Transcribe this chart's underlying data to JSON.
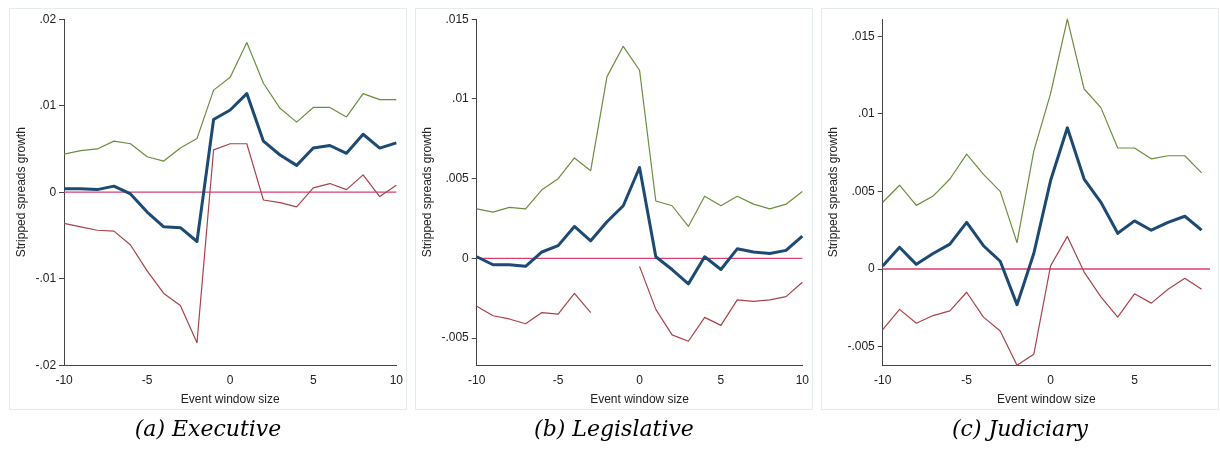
{
  "chart_data": [
    {
      "type": "line",
      "title": "(a) Executive",
      "xlabel": "Event window size",
      "ylabel": "Stripped spreads growth",
      "x": [
        -10,
        -9,
        -8,
        -7,
        -6,
        -5,
        -4,
        -3,
        -2,
        -1,
        0,
        1,
        2,
        3,
        4,
        5,
        6,
        7,
        8,
        9,
        10
      ],
      "series": [
        {
          "color": "#6b8e3e",
          "values": [
            0.0044,
            0.0048,
            0.005,
            0.0059,
            0.0056,
            0.0041,
            0.0036,
            0.0051,
            0.0062,
            0.0118,
            0.0133,
            0.0173,
            0.0126,
            0.0097,
            0.0081,
            0.0098,
            0.0098,
            0.0087,
            0.0114,
            0.0107,
            0.0107
          ]
        },
        {
          "color": "#a8434a",
          "values": [
            -0.0036,
            -0.004,
            -0.0044,
            -0.0045,
            -0.0061,
            -0.0091,
            -0.0117,
            -0.0131,
            -0.0174,
            0.0049,
            0.0056,
            0.0056,
            -0.0009,
            -0.0012,
            -0.0017,
            0.0005,
            0.001,
            0.0003,
            0.002,
            -0.0005,
            0.0008
          ]
        },
        {
          "color": "#1d4a72",
          "values": [
            0.0004,
            0.0004,
            0.0003,
            0.0007,
            -0.0002,
            -0.0023,
            -0.004,
            -0.0041,
            -0.0057,
            0.0084,
            0.0095,
            0.0114,
            0.0059,
            0.0043,
            0.0031,
            0.0051,
            0.0054,
            0.0045,
            0.0067,
            0.0051,
            0.0057
          ]
        }
      ],
      "xlim": [
        -10,
        10
      ],
      "xticks": [
        -10,
        -5,
        0,
        5,
        10
      ],
      "ylim": [
        -0.02,
        0.02
      ],
      "yticks": [
        {
          "value": -0.02,
          "label": "-.02"
        },
        {
          "value": -0.01,
          "label": "-.01"
        },
        {
          "value": 0,
          "label": "0"
        },
        {
          "value": 0.01,
          "label": ".01"
        },
        {
          "value": 0.02,
          "label": ".02"
        }
      ],
      "ref_lines": [
        {
          "axis": "y",
          "value": 0,
          "color": "#d94070"
        }
      ],
      "grid": false,
      "legend": false
    },
    {
      "type": "line",
      "title": "(b) Legislative",
      "xlabel": "Event window size",
      "ylabel": "Stripped spreads growth",
      "x": [
        -10,
        -9,
        -8,
        -7,
        -6,
        -5,
        -4,
        -3,
        -2,
        -1,
        0,
        1,
        2,
        3,
        4,
        5,
        6,
        7,
        8,
        9,
        10
      ],
      "series": [
        {
          "color": "#6b8e3e",
          "values": [
            0.0031,
            0.0029,
            0.0032,
            0.0031,
            0.0043,
            0.005,
            0.0063,
            0.0055,
            0.0114,
            0.0133,
            0.0118,
            0.0036,
            0.0033,
            0.002,
            0.0039,
            0.0033,
            0.0039,
            0.0034,
            0.0031,
            0.0034,
            0.0042
          ]
        },
        {
          "color": "#a8434a",
          "values": [
            -0.003,
            -0.0036,
            -0.0038,
            -0.0041,
            -0.0034,
            -0.0035,
            -0.0022,
            -0.0034,
            null,
            null,
            -0.0005,
            -0.0032,
            -0.0048,
            -0.0052,
            -0.0037,
            -0.0042,
            -0.0026,
            -0.0027,
            -0.0026,
            -0.0024,
            -0.0015
          ]
        },
        {
          "color": "#1d4a72",
          "values": [
            0.0001,
            -0.0004,
            -0.0004,
            -0.0005,
            0.0004,
            0.0008,
            0.002,
            0.0011,
            0.0023,
            0.0033,
            0.0057,
            0.0001,
            -0.0007,
            -0.0016,
            0.0001,
            -0.0007,
            0.0006,
            0.0004,
            0.0003,
            0.0005,
            0.0014
          ]
        }
      ],
      "xlim": [
        -10,
        10
      ],
      "xticks": [
        -10,
        -5,
        0,
        5,
        10
      ],
      "ylim": [
        -0.0067,
        0.015
      ],
      "yticks": [
        {
          "value": -0.005,
          "label": "-.005"
        },
        {
          "value": 0,
          "label": "0"
        },
        {
          "value": 0.005,
          "label": ".005"
        },
        {
          "value": 0.01,
          "label": ".01"
        },
        {
          "value": 0.015,
          "label": ".015"
        }
      ],
      "ref_lines": [
        {
          "axis": "y",
          "value": 0,
          "color": "#d94070"
        }
      ],
      "grid": false,
      "legend": false
    },
    {
      "type": "line",
      "title": "(c) Judiciary",
      "xlabel": "Event window size",
      "ylabel": "Stripped spreads growth",
      "x": [
        -10,
        -9,
        -8,
        -7,
        -6,
        -5,
        -4,
        -3,
        -2,
        -1,
        0,
        1,
        2,
        3,
        4,
        5,
        6,
        7,
        8,
        9
      ],
      "series": [
        {
          "color": "#6b8e3e",
          "values": [
            0.0043,
            0.0054,
            0.0041,
            0.0047,
            0.0058,
            0.0074,
            0.0061,
            0.005,
            0.0017,
            0.0076,
            0.0113,
            0.0161,
            0.0116,
            0.0104,
            0.0078,
            0.0078,
            0.0071,
            0.0073,
            0.0073,
            0.0062
          ]
        },
        {
          "color": "#a8434a",
          "values": [
            -0.0039,
            -0.0026,
            -0.0035,
            -0.003,
            -0.0027,
            -0.0015,
            -0.0031,
            -0.004,
            -0.0062,
            -0.0055,
            0.0002,
            0.0021,
            -0.0002,
            -0.0018,
            -0.0031,
            -0.0016,
            -0.0022,
            -0.0013,
            -0.0006,
            -0.0013
          ]
        },
        {
          "color": "#1d4a72",
          "values": [
            0.0002,
            0.0014,
            0.0003,
            0.001,
            0.0016,
            0.003,
            0.0015,
            0.0005,
            -0.0023,
            0.001,
            0.0057,
            0.0091,
            0.0058,
            0.0043,
            0.0023,
            0.0031,
            0.0025,
            0.003,
            0.0034,
            0.0025
          ]
        }
      ],
      "xlim": [
        -10,
        9.5
      ],
      "xticks": [
        -10,
        -5,
        0,
        5
      ],
      "ylim": [
        -0.0062,
        0.0161
      ],
      "yticks": [
        {
          "value": -0.005,
          "label": "-.005"
        },
        {
          "value": 0,
          "label": "0"
        },
        {
          "value": 0.005,
          "label": ".005"
        },
        {
          "value": 0.01,
          "label": ".01"
        },
        {
          "value": 0.015,
          "label": ".015"
        }
      ],
      "ref_lines": [
        {
          "axis": "y",
          "value": 0,
          "color": "#d94070"
        }
      ],
      "grid": false,
      "legend": false
    }
  ]
}
